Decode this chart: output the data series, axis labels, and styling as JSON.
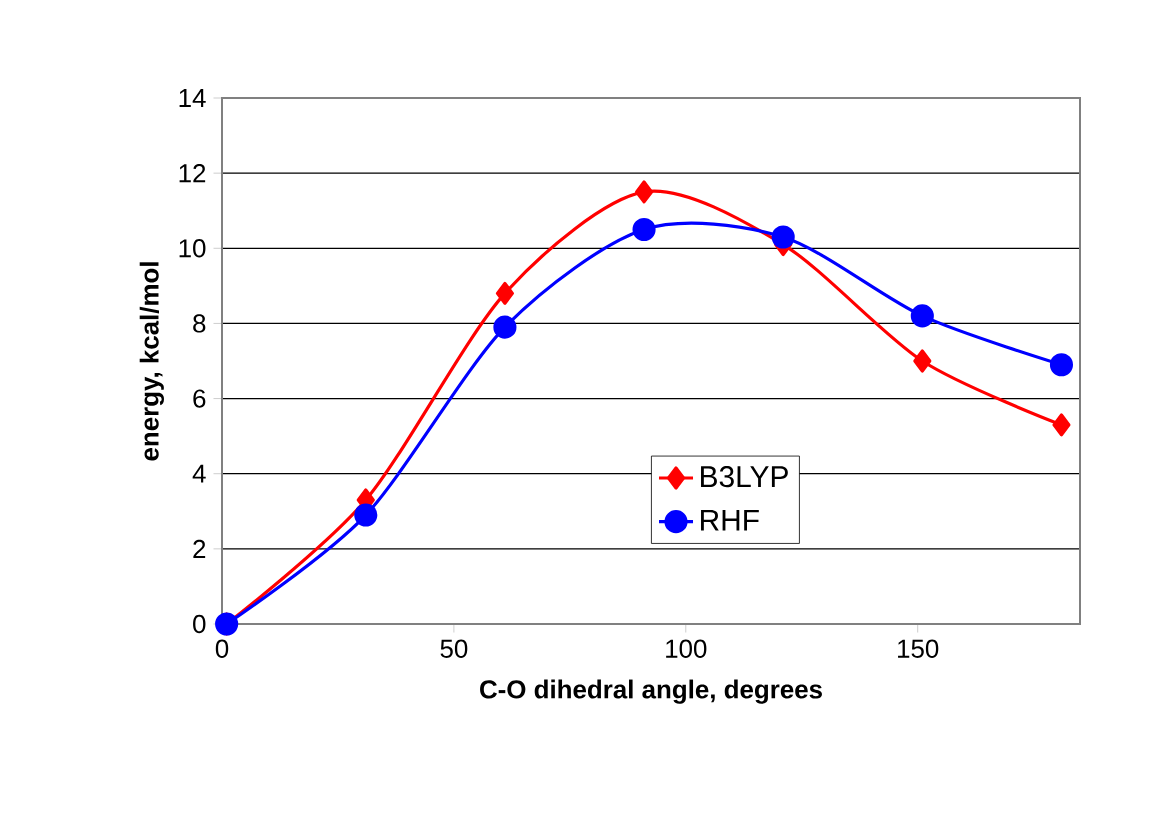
{
  "chart_data": {
    "type": "line",
    "xlabel": "C-O dihedral angle, degrees",
    "ylabel": "energy, kcal/mol",
    "x": [
      1,
      31,
      61,
      91,
      121,
      151,
      181
    ],
    "series": [
      {
        "name": "B3LYP",
        "color": "#ff0000",
        "marker": "diamond",
        "values": [
          0.0,
          3.3,
          8.8,
          11.5,
          10.1,
          7.0,
          5.3
        ]
      },
      {
        "name": "RHF",
        "color": "#0000ff",
        "marker": "circle",
        "values": [
          0.0,
          2.9,
          7.9,
          10.5,
          10.3,
          8.2,
          6.9
        ]
      }
    ],
    "xlim": [
      0,
      185
    ],
    "xticks": [
      0,
      50,
      100,
      150
    ],
    "ylim": [
      0,
      14
    ],
    "yticks": [
      0,
      2,
      4,
      6,
      8,
      10,
      12,
      14
    ],
    "grid": "y",
    "legend": "bottom right",
    "line_style": "solid"
  }
}
